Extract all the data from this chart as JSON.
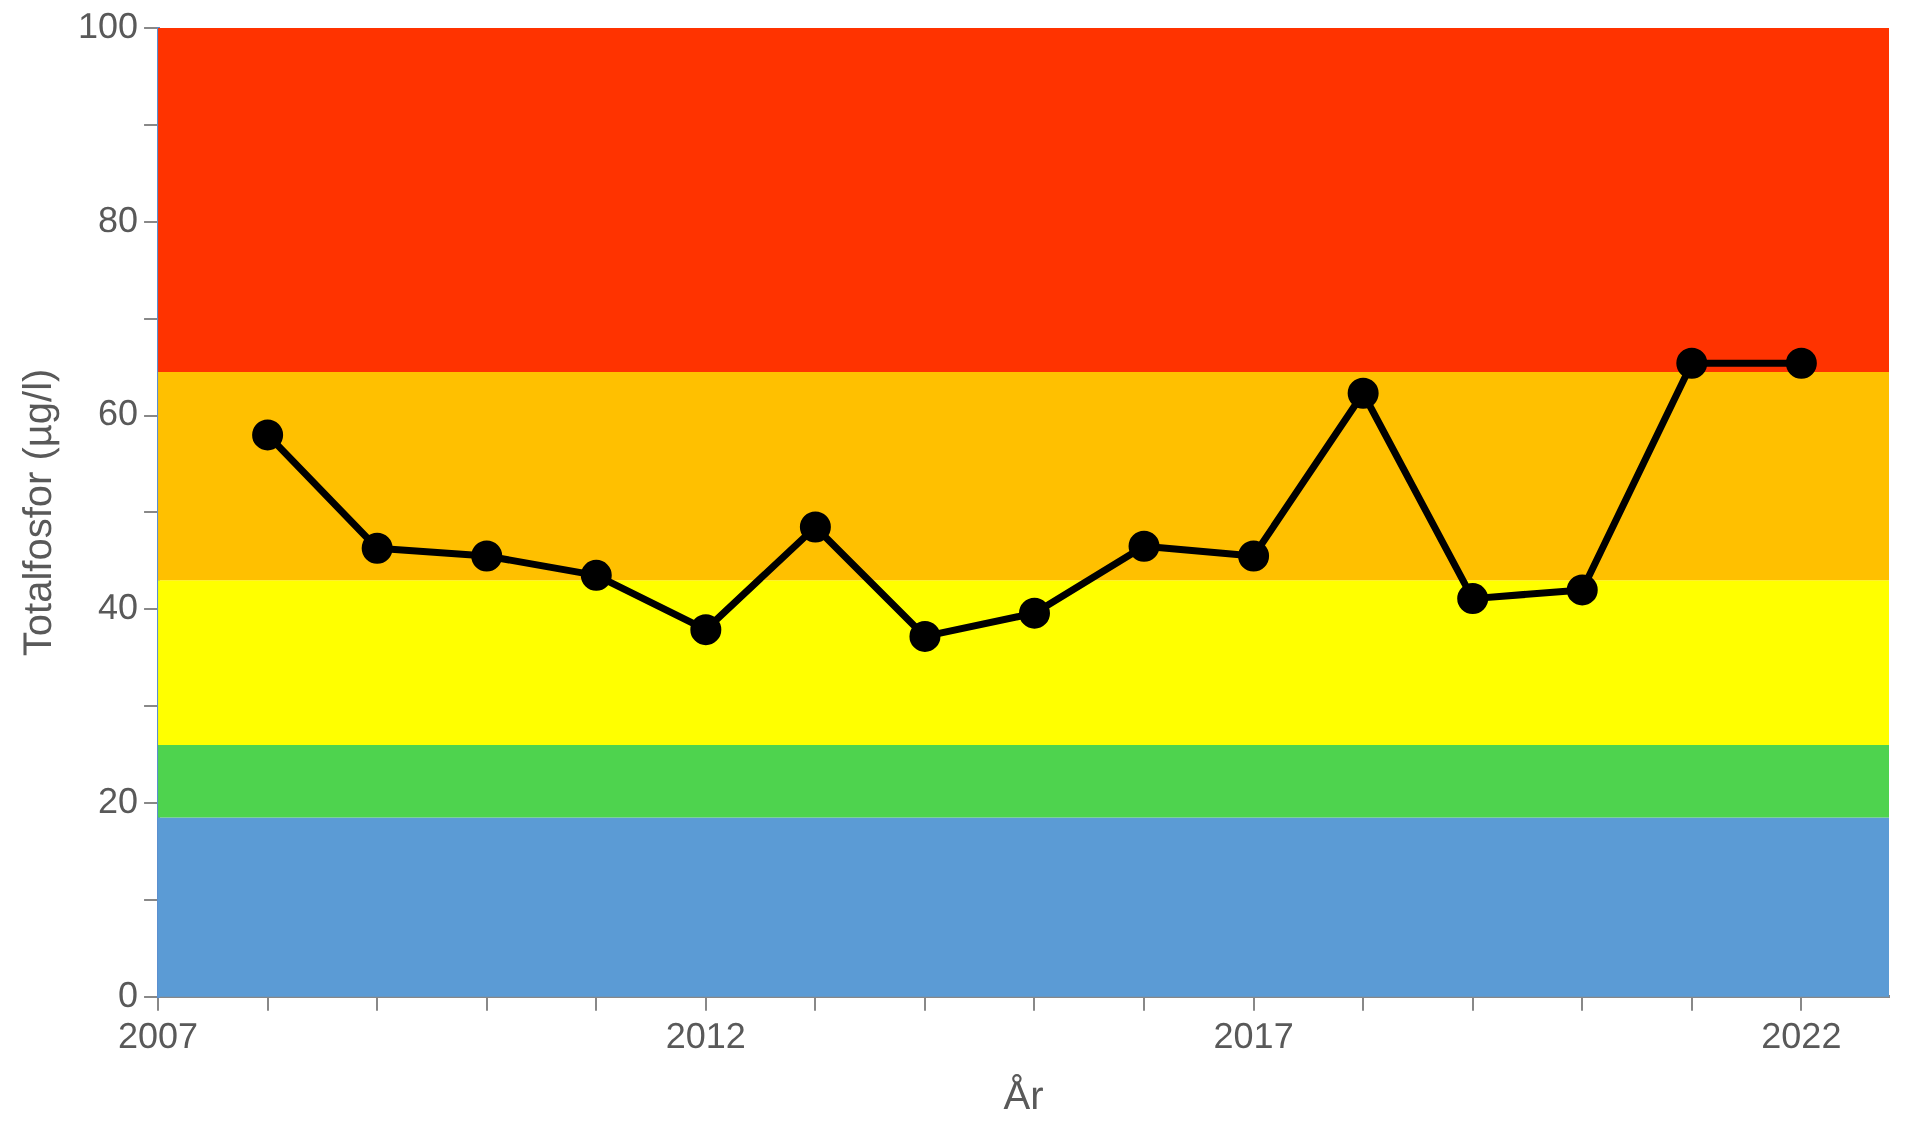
{
  "chart_data": {
    "type": "line",
    "xlabel": "År",
    "ylabel": "Totalfosfor (µg/l)",
    "x": [
      2008,
      2009,
      2010,
      2011,
      2012,
      2013,
      2014,
      2015,
      2016,
      2017,
      2018,
      2019,
      2020,
      2021,
      2022
    ],
    "series": [
      {
        "color": "#000000",
        "values": [
          58.0,
          46.3,
          45.5,
          43.5,
          37.9,
          48.5,
          37.2,
          39.6,
          46.5,
          45.5,
          62.3,
          41.1,
          42.0,
          65.4,
          65.4
        ]
      }
    ],
    "xlim": [
      2007,
      2022.8
    ],
    "xticks": [
      2007,
      {
        "value": 2008,
        "label": null
      },
      {
        "value": 2009,
        "label": null
      },
      {
        "value": 2010,
        "label": null
      },
      {
        "value": 2011,
        "label": null
      },
      2012,
      {
        "value": 2013,
        "label": null
      },
      {
        "value": 2014,
        "label": null
      },
      {
        "value": 2015,
        "label": null
      },
      {
        "value": 2016,
        "label": null
      },
      2017,
      {
        "value": 2018,
        "label": null
      },
      {
        "value": 2019,
        "label": null
      },
      {
        "value": 2020,
        "label": null
      },
      {
        "value": 2021,
        "label": null
      },
      2022
    ],
    "ylim": [
      0,
      100
    ],
    "yticks": [
      0,
      {
        "value": 10,
        "label": null
      },
      20,
      {
        "value": 30,
        "label": null
      },
      40,
      {
        "value": 50,
        "label": null
      },
      60,
      {
        "value": 70,
        "label": null
      },
      80,
      {
        "value": 90,
        "label": null
      },
      100
    ],
    "bands": [
      {
        "axis": "y",
        "from": 0,
        "to": 18.5,
        "color": "#5b9bd5"
      },
      {
        "axis": "y",
        "from": 18.5,
        "to": 26,
        "color": "#4ed34e"
      },
      {
        "axis": "y",
        "from": 26,
        "to": 43,
        "color": "#ffff00"
      },
      {
        "axis": "y",
        "from": 43,
        "to": 64.5,
        "color": "#ffc000"
      },
      {
        "axis": "y",
        "from": 64.5,
        "to": 100,
        "color": "#ff3300"
      }
    ],
    "grid": false,
    "legend": false,
    "marker": "circle",
    "line_style": "solid"
  }
}
